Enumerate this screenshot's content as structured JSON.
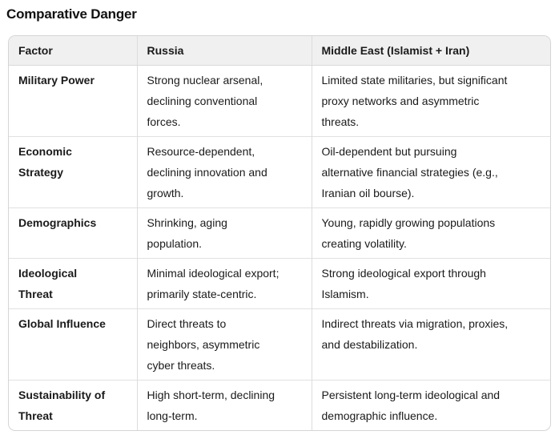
{
  "page": {
    "title": "Comparative Danger"
  },
  "colors": {
    "header_background": "#f0f0f1",
    "border": "#d9d9d9",
    "text": "#1a1a1a",
    "background": "#ffffff"
  },
  "table": {
    "columns": [
      "Factor",
      "Russia",
      "Middle East (Islamist + Iran)"
    ],
    "rows": [
      {
        "factor": "Military Power",
        "russia": "Strong nuclear arsenal,\ndeclining conventional\nforces.",
        "middle_east": "Limited state militaries, but significant\nproxy networks and asymmetric\nthreats."
      },
      {
        "factor": "Economic\nStrategy",
        "russia": "Resource-dependent,\ndeclining innovation and\ngrowth.",
        "middle_east": "Oil-dependent but pursuing\nalternative financial strategies (e.g.,\nIranian oil bourse)."
      },
      {
        "factor": "Demographics",
        "russia": "Shrinking, aging\npopulation.",
        "middle_east": "Young, rapidly growing populations\ncreating volatility."
      },
      {
        "factor": "Ideological\nThreat",
        "russia": "Minimal ideological export;\nprimarily state-centric.",
        "middle_east": "Strong ideological export through\nIslamism."
      },
      {
        "factor": "Global Influence",
        "russia": "Direct threats to\nneighbors, asymmetric\ncyber threats.",
        "middle_east": "Indirect threats via migration, proxies,\nand destabilization."
      },
      {
        "factor": "Sustainability of\nThreat",
        "russia": "High short-term, declining\nlong-term.",
        "middle_east": "Persistent long-term ideological and\ndemographic influence."
      }
    ]
  }
}
